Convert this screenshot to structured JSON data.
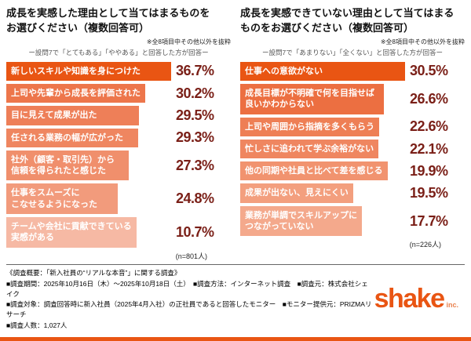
{
  "colors": {
    "accent": "#e95513",
    "percent_text": "#7a1f17"
  },
  "chart_data": [
    {
      "type": "bar",
      "orientation": "horizontal",
      "title": "成長を実感した理由として当てはまるものを\nお選びください（複数回答可）",
      "note": "※全8項目中その他以外を抜粋",
      "subnote": "ー設問7で「とてもある」「ややある」と回答した方が回答ー",
      "sample_label": "(n=801人)",
      "xmax": 36.7,
      "categories": [
        "新しいスキルや知識を身につけた",
        "上司や先輩から成長を評価された",
        "目に見えて成果が出た",
        "任される業務の幅が広がった",
        "社外（顧客・取引先）から\n信頼を得られたと感じた",
        "仕事をスムーズに\nこなせるようになった",
        "チームや会社に貢献できている\n実感がある"
      ],
      "values": [
        36.7,
        30.2,
        29.5,
        29.3,
        27.3,
        24.8,
        10.7
      ],
      "value_labels": [
        "36.7%",
        "30.2%",
        "29.5%",
        "29.3%",
        "27.3%",
        "24.8%",
        "10.7%"
      ],
      "bar_colors": [
        "#e95513",
        "#ed764b",
        "#ee7f58",
        "#ef8660",
        "#f08f6c",
        "#f29b7c",
        "#f6b9a4"
      ]
    },
    {
      "type": "bar",
      "orientation": "horizontal",
      "title": "成長を実感できていない理由として当てはまる\nものをお選びください（複数回答可）",
      "note": "※全8項目中その他以外を抜粋",
      "subnote": "ー設問7で「あまりない」「全くない」と回答した方が回答ー",
      "sample_label": "(n=226人)",
      "xmax": 30.5,
      "categories": [
        "仕事への意欲がない",
        "成長目標が不明確で何を目指せば\n良いかわからない",
        "上司や周囲から指摘を多くもらう",
        "忙しさに追われて学ぶ余裕がない",
        "他の同期や社員と比べて差を感じる",
        "成果が出ない、見えにくい",
        "業務が単調でスキルアップに\nつながっていない"
      ],
      "values": [
        30.5,
        26.6,
        22.6,
        22.1,
        19.9,
        19.5,
        17.7
      ],
      "value_labels": [
        "30.5%",
        "26.6%",
        "22.6%",
        "22.1%",
        "19.9%",
        "19.5%",
        "17.7%"
      ],
      "bar_colors": [
        "#e95513",
        "#ec6f41",
        "#ee7f55",
        "#ef8660",
        "#f1936f",
        "#f39f7e",
        "#f4a98c"
      ]
    }
  ],
  "footer": {
    "line0": "《調査概要：「新入社員の“リアルな本音”」に関する調査》",
    "line1": "■調査期間：2025年10月16日（木）～2025年10月18日（土）　■調査方法：インターネット調査　■調査元：株式会社シェイク",
    "line2": "■調査対象：調査回答時に新入社員（2025年4月入社）の正社員であると回答したモニター　■モニター提供元：PRIZMAリサーチ",
    "line3": "■調査人数：1,027人"
  },
  "logo": {
    "text": "shake",
    "suffix": "inc."
  }
}
